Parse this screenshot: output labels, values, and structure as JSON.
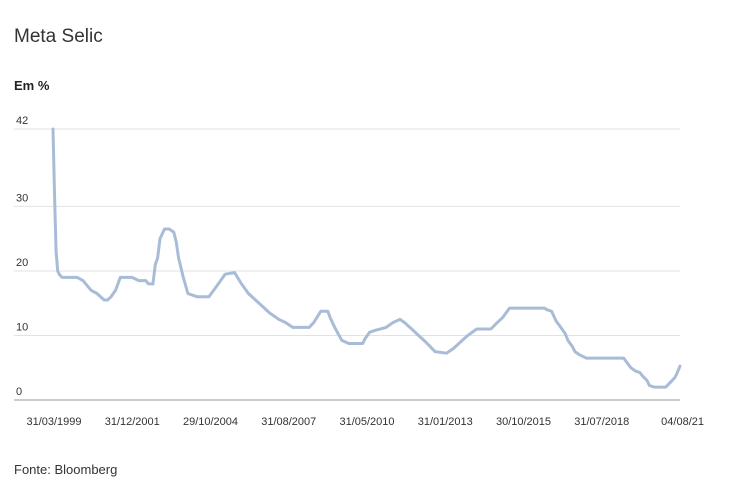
{
  "title": "Meta Selic",
  "unit_label": "Em %",
  "source": "Fonte: Bloomberg",
  "colors": {
    "line": "#a8bcd8",
    "grid": "#e2e2e2",
    "axis": "#9a9a9a"
  },
  "chart_data": {
    "type": "line",
    "title": "Meta Selic",
    "ylabel": "Em %",
    "ylim": [
      0,
      42
    ],
    "y_ticks": [
      0,
      10,
      20,
      30,
      42
    ],
    "x_ticks": [
      "31/03/1999",
      "31/12/2001",
      "29/10/2004",
      "31/08/2007",
      "31/05/2010",
      "31/01/2013",
      "30/10/2015",
      "31/07/2018",
      "04/08/21"
    ],
    "grid": true,
    "series": [
      {
        "x": [
          "1999-03-05",
          "1999-03-25",
          "1999-04-15",
          "1999-05-05",
          "1999-05-25",
          "1999-06-30",
          "1999-09-30",
          "2000-01-15",
          "2000-03-31",
          "2000-07-15",
          "2000-09-30",
          "2000-12-31",
          "2001-02-15",
          "2001-03-31",
          "2001-05-31",
          "2001-07-31",
          "2001-12-31",
          "2002-03-31",
          "2002-06-30",
          "2002-07-31",
          "2002-09-30",
          "2002-10-31",
          "2002-11-30",
          "2002-12-31",
          "2003-02-28",
          "2003-04-30",
          "2003-06-30",
          "2003-07-31",
          "2003-08-31",
          "2003-10-31",
          "2003-12-31",
          "2004-04-30",
          "2004-09-30",
          "2004-12-31",
          "2005-04-30",
          "2005-08-31",
          "2005-11-30",
          "2006-02-28",
          "2006-05-31",
          "2006-08-31",
          "2006-11-30",
          "2007-03-31",
          "2007-06-30",
          "2007-09-30",
          "2008-04-30",
          "2008-06-30",
          "2008-09-30",
          "2008-12-31",
          "2009-01-31",
          "2009-03-31",
          "2009-06-30",
          "2009-09-30",
          "2010-03-31",
          "2010-04-30",
          "2010-06-30",
          "2010-08-31",
          "2011-01-31",
          "2011-04-30",
          "2011-07-31",
          "2011-09-30",
          "2011-12-31",
          "2012-03-31",
          "2012-06-30",
          "2012-10-31",
          "2013-03-31",
          "2013-06-30",
          "2013-09-30",
          "2013-12-31",
          "2014-04-30",
          "2014-10-31",
          "2014-12-31",
          "2015-03-31",
          "2015-06-30",
          "2015-07-31",
          "2016-09-30",
          "2016-10-31",
          "2016-12-31",
          "2017-02-28",
          "2017-04-30",
          "2017-06-30",
          "2017-07-31",
          "2017-09-30",
          "2017-10-31",
          "2017-12-31",
          "2018-03-31",
          "2019-07-31",
          "2019-09-30",
          "2019-10-31",
          "2019-12-31",
          "2020-02-29",
          "2020-03-31",
          "2020-05-31",
          "2020-06-30",
          "2020-08-31",
          "2021-01-31",
          "2021-03-31",
          "2021-05-31",
          "2021-06-30",
          "2021-08-04"
        ],
        "values": [
          42,
          32,
          23,
          20,
          19.5,
          19,
          19,
          19,
          18.5,
          17,
          16.5,
          15.5,
          15.5,
          16,
          17,
          19,
          19,
          18.5,
          18.5,
          18,
          18,
          21,
          22,
          25,
          26.5,
          26.5,
          26,
          24.5,
          22,
          19,
          16.5,
          16,
          16,
          17.5,
          19.5,
          19.75,
          18,
          16.5,
          15.5,
          14.5,
          13.5,
          12.5,
          12,
          11.25,
          11.25,
          12,
          13.75,
          13.75,
          12.75,
          11.25,
          9.25,
          8.75,
          8.75,
          9.5,
          10.5,
          10.75,
          11.25,
          12,
          12.5,
          12,
          11,
          10,
          9,
          7.5,
          7.25,
          8,
          9,
          10,
          11,
          11,
          11.75,
          12.75,
          14.25,
          14.25,
          14.25,
          14,
          13.75,
          12.25,
          11.25,
          10.25,
          9.25,
          8.25,
          7.5,
          7,
          6.5,
          6.5,
          5.5,
          5,
          4.5,
          4.25,
          3.75,
          3,
          2.25,
          2,
          2,
          2.75,
          3.5,
          4.25,
          5.25
        ]
      }
    ]
  }
}
